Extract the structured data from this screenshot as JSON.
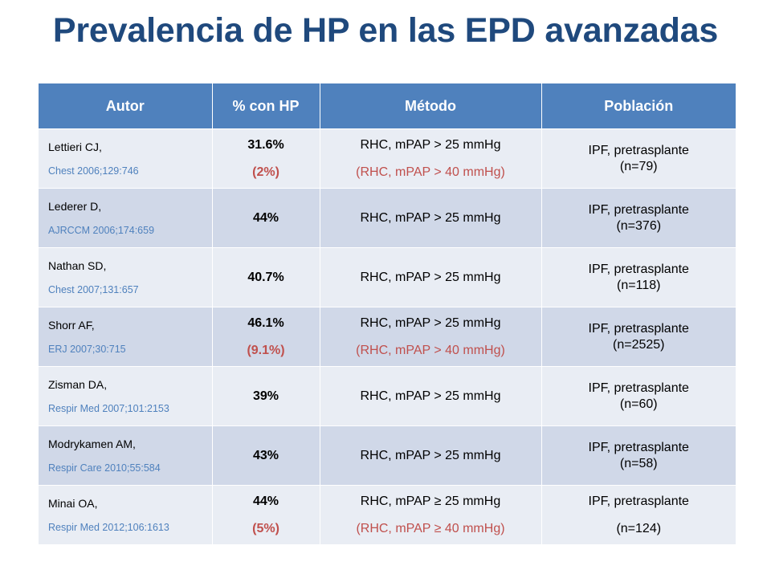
{
  "title": "Prevalencia de HP en las EPD avanzadas",
  "colors": {
    "title": "#1F497D",
    "header_bg": "#4F81BD",
    "row_light": "#E9EDF4",
    "row_dark": "#D0D8E8",
    "reference": "#4F81BD",
    "secondary_value": "#C0504D"
  },
  "table": {
    "headers": [
      "Autor",
      "% con HP",
      "Método",
      "Población"
    ],
    "rows": [
      {
        "author": "Lettieri CJ,",
        "ref": "Chest 2006;129:746",
        "pct": "31.6%",
        "pct_sub": "(2%)",
        "method": "RHC, mPAP > 25 mmHg",
        "method_sub": "(RHC, mPAP > 40 mmHg)",
        "population": "IPF, pretrasplante",
        "n": "(n=79)"
      },
      {
        "author": "Lederer D,",
        "ref": "AJRCCM 2006;174:659",
        "pct": "44%",
        "method": "RHC, mPAP > 25 mmHg",
        "population": "IPF, pretrasplante",
        "n": "(n=376)"
      },
      {
        "author": "Nathan SD,",
        "ref": "Chest 2007;131:657",
        "pct": "40.7%",
        "method": "RHC, mPAP > 25 mmHg",
        "population": "IPF, pretrasplante",
        "n": "(n=118)"
      },
      {
        "author": "Shorr AF,",
        "ref": "ERJ 2007;30:715",
        "pct": "46.1%",
        "pct_sub": "(9.1%)",
        "method": "RHC, mPAP > 25 mmHg",
        "method_sub": "(RHC, mPAP > 40 mmHg)",
        "population": "IPF, pretrasplante",
        "n": "(n=2525)"
      },
      {
        "author": "Zisman DA,",
        "ref": "Respir Med 2007;101:2153",
        "pct": "39%",
        "method": "RHC, mPAP > 25 mmHg",
        "population": "IPF, pretrasplante",
        "n": "(n=60)"
      },
      {
        "author": "Modrykamen AM,",
        "ref": "Respir Care 2010;55:584",
        "pct": "43%",
        "method": "RHC, mPAP > 25 mmHg",
        "population": "IPF, pretrasplante",
        "n": "(n=58)"
      },
      {
        "author": "Minai OA,",
        "ref": "Respir Med 2012;106:1613",
        "pct": "44%",
        "pct_sub": "(5%)",
        "method": "RHC, mPAP ≥ 25 mmHg",
        "method_sub": "(RHC, mPAP ≥ 40 mmHg)",
        "population": "IPF, pretrasplante",
        "n": "(n=124)"
      }
    ]
  }
}
